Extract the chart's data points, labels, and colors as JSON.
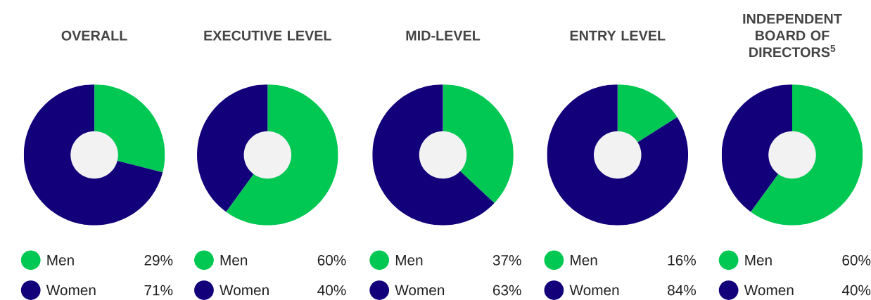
{
  "chart_data": [
    {
      "type": "donut",
      "title": "OVERALL",
      "categories": [
        "Men",
        "Women"
      ],
      "values": [
        29,
        71
      ],
      "colors": [
        "#00c853",
        "#12007a"
      ],
      "value_labels": [
        "29%",
        "71%"
      ],
      "legend": "bottom"
    },
    {
      "type": "donut",
      "title": "EXECUTIVE LEVEL",
      "categories": [
        "Men",
        "Women"
      ],
      "values": [
        60,
        40
      ],
      "colors": [
        "#00c853",
        "#12007a"
      ],
      "value_labels": [
        "60%",
        "40%"
      ],
      "legend": "bottom"
    },
    {
      "type": "donut",
      "title": "MID-LEVEL",
      "categories": [
        "Men",
        "Women"
      ],
      "values": [
        37,
        63
      ],
      "colors": [
        "#00c853",
        "#12007a"
      ],
      "value_labels": [
        "37%",
        "63%"
      ],
      "legend": "bottom"
    },
    {
      "type": "donut",
      "title": "ENTRY LEVEL",
      "categories": [
        "Men",
        "Women"
      ],
      "values": [
        16,
        84
      ],
      "colors": [
        "#00c853",
        "#12007a"
      ],
      "value_labels": [
        "16%",
        "84%"
      ],
      "legend": "bottom"
    },
    {
      "type": "donut",
      "title": "INDEPENDENT BOARD OF DIRECTORS$^{5}$",
      "categories": [
        "Men",
        "Women"
      ],
      "values": [
        60,
        40
      ],
      "colors": [
        "#00c853",
        "#12007a"
      ],
      "value_labels": [
        "60%",
        "40%"
      ],
      "legend": "bottom"
    }
  ]
}
